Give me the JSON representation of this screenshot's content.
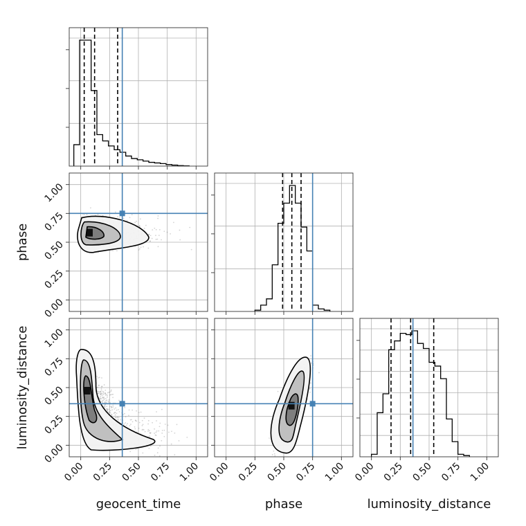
{
  "chart_data": {
    "type": "corner",
    "parameters": [
      {
        "key": "geocent_time",
        "label": "geocent_time",
        "range": [
          -0.1,
          1.1
        ]
      },
      {
        "key": "phase",
        "label": "phase",
        "range": [
          -0.1,
          1.1
        ]
      },
      {
        "key": "luminosity_distance",
        "label": "luminosity_distance",
        "range": [
          -0.1,
          1.1
        ]
      }
    ],
    "ticks": [
      0.0,
      0.25,
      0.5,
      0.75,
      1.0
    ],
    "tick_labels": [
      "0.00",
      "0.25",
      "0.50",
      "0.75",
      "1.00"
    ],
    "truths": {
      "geocent_time": 0.36,
      "phase": 0.75,
      "luminosity_distance": 0.36
    },
    "quantiles": {
      "geocent_time": [
        0.03,
        0.12,
        0.32
      ],
      "phase": [
        0.49,
        0.57,
        0.65
      ],
      "luminosity_distance": [
        0.17,
        0.34,
        0.54
      ]
    },
    "histograms": {
      "geocent_time": {
        "bin_edges": [
          -0.06,
          -0.01,
          0.04,
          0.09,
          0.14,
          0.19,
          0.24,
          0.29,
          0.34,
          0.39,
          0.44,
          0.49,
          0.54,
          0.59,
          0.64,
          0.69,
          0.74,
          0.79,
          0.84,
          0.89,
          0.94
        ],
        "counts": [
          0.17,
          1.0,
          1.0,
          0.6,
          0.25,
          0.2,
          0.16,
          0.13,
          0.11,
          0.08,
          0.06,
          0.05,
          0.04,
          0.03,
          0.025,
          0.02,
          0.012,
          0.008,
          0.004,
          0.002
        ]
      },
      "phase": {
        "bin_edges": [
          0.25,
          0.3,
          0.35,
          0.4,
          0.45,
          0.5,
          0.55,
          0.6,
          0.65,
          0.7,
          0.75,
          0.8,
          0.85,
          0.9
        ],
        "counts": [
          0.01,
          0.05,
          0.1,
          0.37,
          0.7,
          0.86,
          1.0,
          0.86,
          0.67,
          0.48,
          0.05,
          0.02,
          0.01
        ]
      },
      "luminosity_distance": {
        "bin_edges": [
          0.0,
          0.05,
          0.1,
          0.15,
          0.2,
          0.25,
          0.3,
          0.35,
          0.4,
          0.45,
          0.5,
          0.55,
          0.6,
          0.65,
          0.7,
          0.75,
          0.8,
          0.85
        ],
        "counts": [
          0.02,
          0.35,
          0.5,
          0.85,
          0.92,
          0.98,
          0.97,
          1.0,
          0.9,
          0.86,
          0.75,
          0.72,
          0.62,
          0.3,
          0.12,
          0.02,
          0.01
        ]
      }
    },
    "density_2d": {
      "phase_vs_geocent_time": {
        "x_param": "geocent_time",
        "y_param": "phase",
        "center": [
          0.08,
          0.58
        ],
        "cloud_extent": {
          "x": [
            0.0,
            0.85
          ],
          "y": [
            0.4,
            0.8
          ]
        },
        "contour_levels": 3
      },
      "luminosity_distance_vs_geocent_time": {
        "x_param": "geocent_time",
        "y_param": "luminosity_distance",
        "center": [
          0.06,
          0.47
        ],
        "cloud_extent": {
          "x": [
            0.0,
            0.9
          ],
          "y": [
            0.05,
            0.75
          ]
        },
        "contour_levels": 3
      },
      "luminosity_distance_vs_phase": {
        "x_param": "phase",
        "y_param": "luminosity_distance",
        "center": [
          0.57,
          0.34
        ],
        "cloud_extent": {
          "x": [
            0.4,
            0.8
          ],
          "y": [
            0.05,
            0.75
          ]
        },
        "contour_levels": 3
      }
    },
    "grid": true,
    "colors": {
      "truth": "#4682b4",
      "hist": "#000000",
      "quantile": "#000000",
      "grid": "#b0b0b0",
      "scatter": "#808080"
    }
  }
}
